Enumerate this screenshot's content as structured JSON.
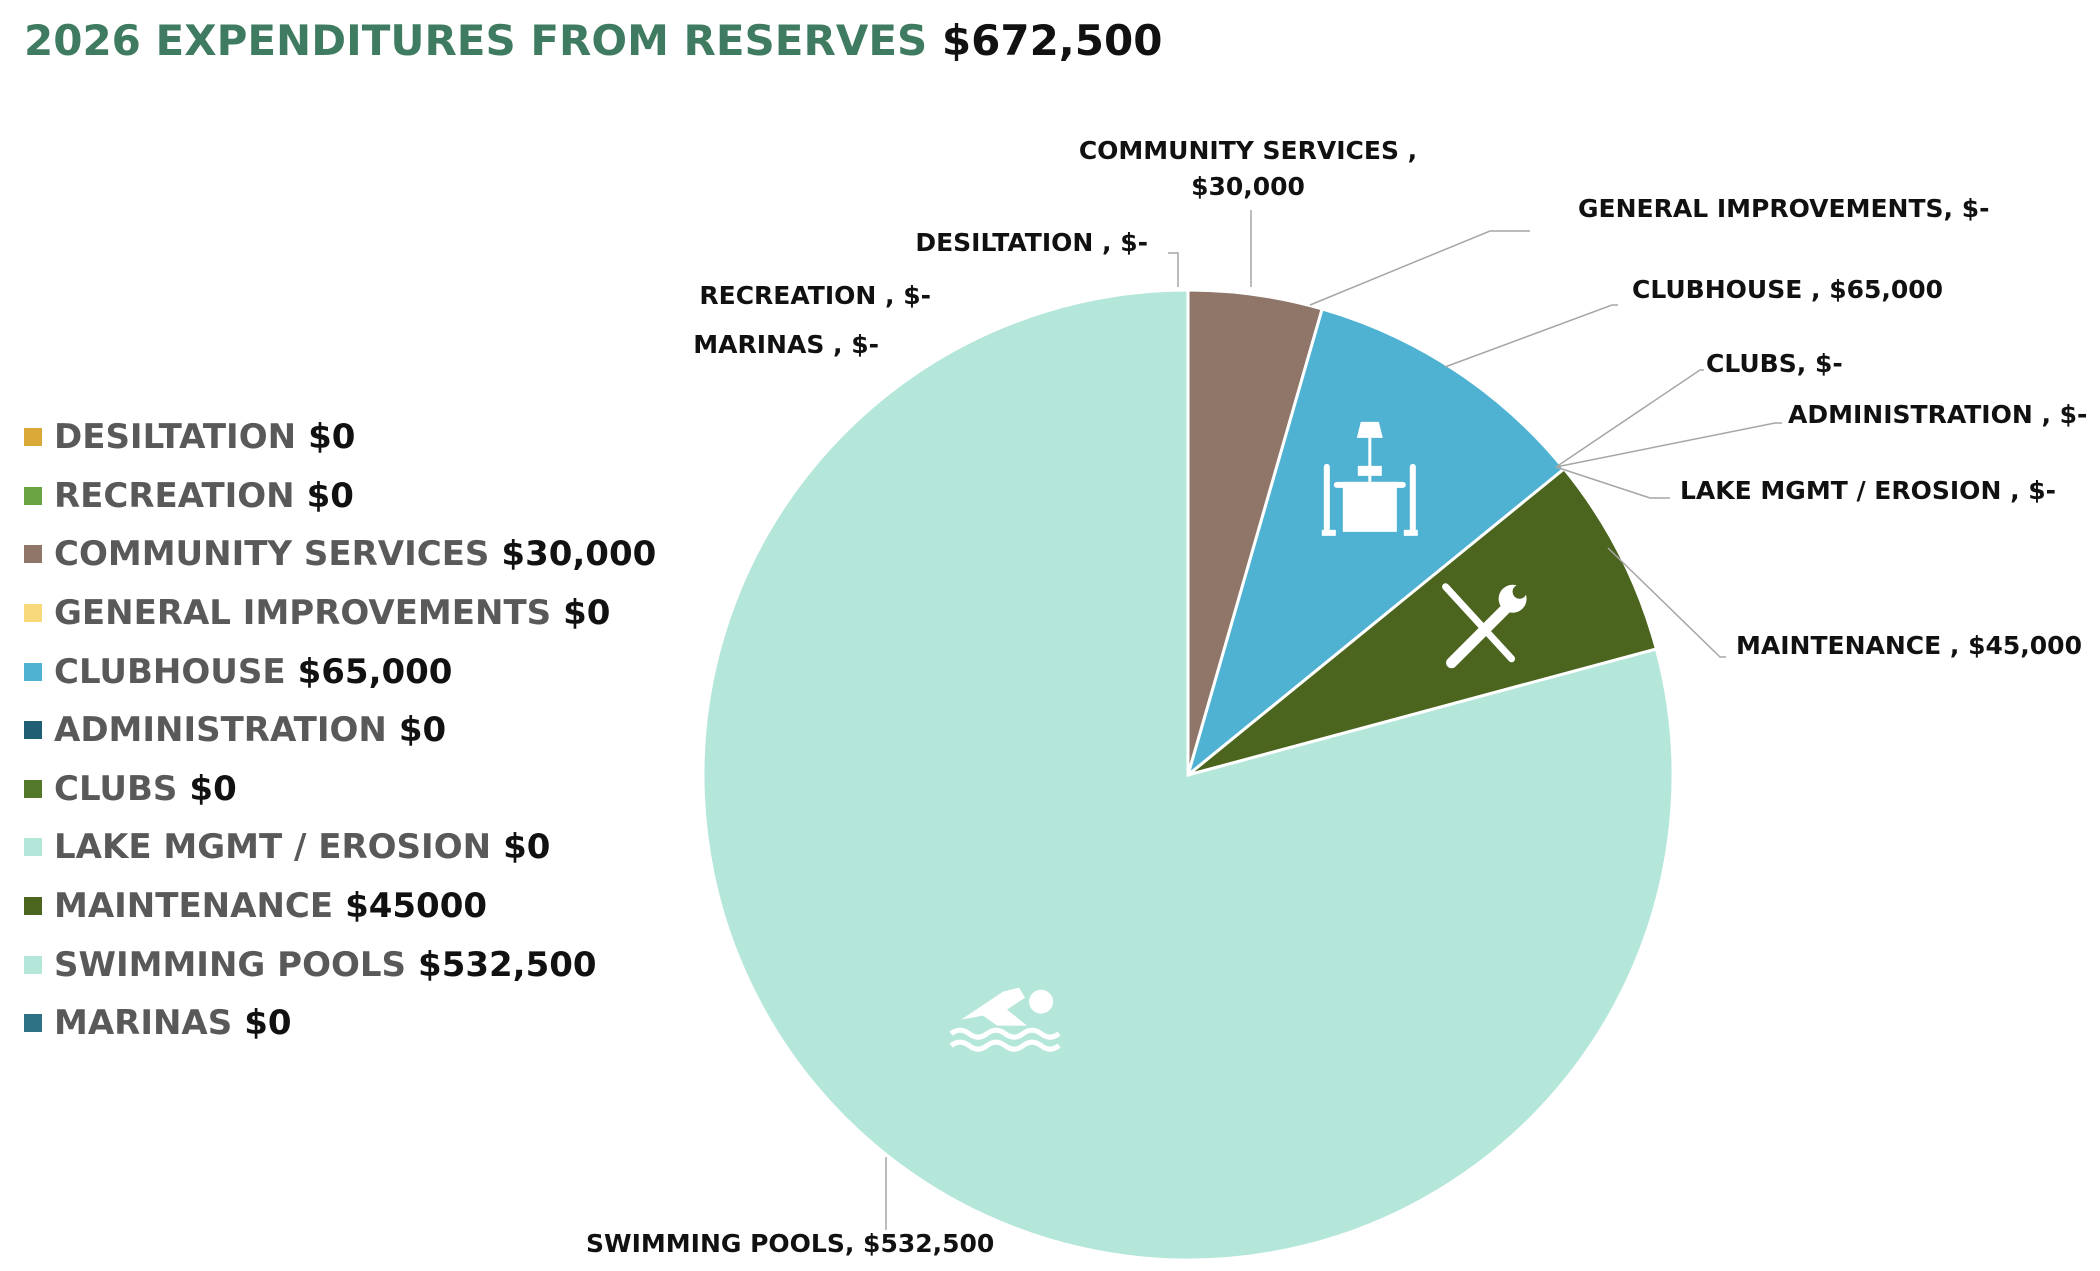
{
  "title": {
    "main": "2026 EXPENDITURES FROM RESERVES",
    "total": "$672,500"
  },
  "legend": [
    {
      "label": "DESILTATION",
      "value": "$0",
      "color": "#D9A836"
    },
    {
      "label": "RECREATION",
      "value": "$0",
      "color": "#6AA341"
    },
    {
      "label": "COMMUNITY SERVICES",
      "value": "$30,000",
      "color": "#8F7669"
    },
    {
      "label": "GENERAL IMPROVEMENTS",
      "value": "$0",
      "color": "#F7D97A"
    },
    {
      "label": "CLUBHOUSE",
      "value": "$65,000",
      "color": "#4FB2D2"
    },
    {
      "label": "ADMINISTRATION",
      "value": "$0",
      "color": "#1F5E73"
    },
    {
      "label": "CLUBS",
      "value": "$0",
      "color": "#54782A"
    },
    {
      "label": "LAKE MGMT / EROSION",
      "value": "$0",
      "color": "#B4E6DA"
    },
    {
      "label": "MAINTENANCE",
      "value": "$45000",
      "color": "#4B651F"
    },
    {
      "label": "SWIMMING POOLS",
      "value": "$532,500",
      "color": "#B4E6DA"
    },
    {
      "label": "MARINAS",
      "value": "$0",
      "color": "#2D7185"
    }
  ],
  "chart_data": {
    "type": "pie",
    "title": "2026 EXPENDITURES FROM RESERVES $672,500",
    "slices": [
      {
        "label": "DESILTATION",
        "value": 0,
        "color": "#D9A836"
      },
      {
        "label": "COMMUNITY SERVICES",
        "value": 30000,
        "color": "#8F7669"
      },
      {
        "label": "GENERAL IMPROVEMENTS",
        "value": 0,
        "color": "#F7D97A"
      },
      {
        "label": "CLUBHOUSE",
        "value": 65000,
        "color": "#4FB2D2",
        "icon": "dining-table-icon"
      },
      {
        "label": "CLUBS",
        "value": 0,
        "color": "#54782A"
      },
      {
        "label": "ADMINISTRATION",
        "value": 0,
        "color": "#1F5E73"
      },
      {
        "label": "LAKE MGMT / EROSION",
        "value": 0,
        "color": "#B4E6DA"
      },
      {
        "label": "MAINTENANCE",
        "value": 45000,
        "color": "#4B651F",
        "icon": "tools-icon"
      },
      {
        "label": "SWIMMING POOLS",
        "value": 532500,
        "color": "#B4E6DA",
        "icon": "swimmer-icon"
      },
      {
        "label": "MARINAS",
        "value": 0,
        "color": "#2D7185"
      },
      {
        "label": "RECREATION",
        "value": 0,
        "color": "#6AA341"
      }
    ],
    "callouts": [
      {
        "line1": "COMMUNITY SERVICES ,",
        "line2": "$30,000"
      },
      {
        "line1": "GENERAL IMPROVEMENTS,  $-"
      },
      {
        "line1": "DESILTATION ,  $-"
      },
      {
        "line1": "CLUBHOUSE ,  $65,000"
      },
      {
        "line1": "RECREATION ,  $-"
      },
      {
        "line1": "MARINAS ,  $-"
      },
      {
        "line1": "CLUBS,  $-"
      },
      {
        "line1": "ADMINISTRATION ,  $-"
      },
      {
        "line1": "LAKE MGMT / EROSION ,  $-"
      },
      {
        "line1": "MAINTENANCE ,  $45,000"
      },
      {
        "line1": "SWIMMING POOLS,  $532,500"
      }
    ]
  }
}
